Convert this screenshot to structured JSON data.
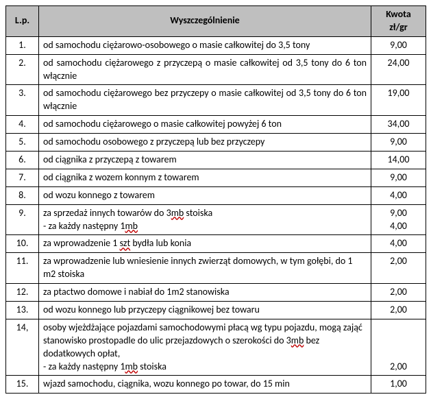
{
  "header": {
    "lp": "L.p.",
    "desc": "Wyszczególnienie",
    "amt_line1": "Kwota",
    "amt_line2": "zł/gr"
  },
  "rows": [
    {
      "lp": "1.",
      "desc": "od samochodu ciężarowo-osobowego o masie całkowitej do 3,5 tony",
      "amt": "9,00"
    },
    {
      "lp": "2.",
      "desc": "od samochodu ciężarowego z przyczepą o masie całkowitej od 3,5 tony do 6 ton włącznie",
      "amt": "24,00"
    },
    {
      "lp": "3.",
      "desc": "od samochodu ciężarowego bez przyczepy o masie całkowitej od 3,5 tony do 6 ton włącznie",
      "amt": "19,00"
    },
    {
      "lp": "4.",
      "desc": "od samochodu ciężarowego  o masie całkowitej powyżej 6 ton",
      "amt": "34,00"
    },
    {
      "lp": "5.",
      "desc": "od samochodu osobowego  z przyczepą lub bez przyczepy",
      "amt": "9,00"
    },
    {
      "lp": "6.",
      "desc": "od ciągnika z przyczepą z towarem",
      "amt": "14,00"
    },
    {
      "lp": "7.",
      "desc": "od ciągnika z wozem konnym z towarem",
      "amt": "9,00"
    },
    {
      "lp": "8.",
      "desc": "od wozu konnego z towarem",
      "amt": "4,00"
    },
    {
      "lp": "9.",
      "desc_l1_pre": "za sprzedaż innych towarów do 3",
      "desc_l1_sp": "mb",
      "desc_l1_post": " stoiska",
      "desc_l2_pre": "- za każdy następny 1",
      "desc_l2_sp": "mb",
      "desc_l2_post": "",
      "amt_l1": "9,00",
      "amt_l2": "4,00"
    },
    {
      "lp": "10.",
      "desc_pre": "za wprowadzenie  1 ",
      "desc_sp": "szt",
      "desc_post": " bydła lub konia",
      "amt": "4,00"
    },
    {
      "lp": "11.",
      "desc": "za wprowadzenie lub wniesienie innych zwierząt domowych, w tym gołębi, do 1 m2 stoiska",
      "amt": "2,00"
    },
    {
      "lp": "12.",
      "desc": "za ptactwo domowe i nabiał do 1m2 stanowiska",
      "amt": "2,00"
    },
    {
      "lp": "13.",
      "desc": "od wozu konnego lub przyczepy ciągnikowej bez towaru",
      "amt": "2,00"
    },
    {
      "lp": "14,",
      "desc_l1_pre": "osoby wjeżdżające pojazdami samochodowymi płacą wg typu pojazdu, mogą zająć stanowisko prostopadle do ulic przejazdowych o szerokości do 3",
      "desc_l1_sp": "mb",
      "desc_l1_post": " bez dodatkowych opłat,",
      "desc_l2_pre": "- za każdy następny 1",
      "desc_l2_sp": "mb",
      "desc_l2_post": " stoiska",
      "amt": "2,00"
    },
    {
      "lp": "15.",
      "desc": "wjazd samochodu, ciągnika, wozu konnego po towar, do 15 min",
      "amt": "1,00"
    }
  ]
}
